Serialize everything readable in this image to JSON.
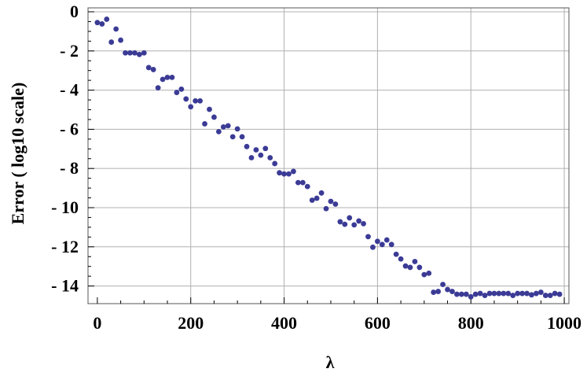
{
  "chart_data": {
    "type": "scatter",
    "title": "",
    "xlabel": "λ",
    "ylabel": "Error ( log10 scale)",
    "xlim": [
      -20,
      1010
    ],
    "ylim": [
      -14.9,
      0.2
    ],
    "xticks": [
      0,
      200,
      400,
      600,
      800,
      1000
    ],
    "yticks": [
      0,
      -2,
      -4,
      -6,
      -8,
      -10,
      -12,
      -14
    ],
    "ytick_labels": [
      "0",
      "- 2",
      "- 4",
      "- 6",
      "- 8",
      "- 10",
      "- 12",
      "- 14"
    ],
    "grid": true,
    "point_color": "#3b3b96",
    "points": [
      [
        0,
        -0.55
      ],
      [
        10,
        -0.62
      ],
      [
        20,
        -0.38
      ],
      [
        30,
        -1.55
      ],
      [
        40,
        -0.88
      ],
      [
        50,
        -1.45
      ],
      [
        60,
        -2.1
      ],
      [
        70,
        -2.1
      ],
      [
        80,
        -2.1
      ],
      [
        90,
        -2.18
      ],
      [
        100,
        -2.1
      ],
      [
        110,
        -2.85
      ],
      [
        120,
        -2.95
      ],
      [
        130,
        -3.88
      ],
      [
        140,
        -3.45
      ],
      [
        150,
        -3.35
      ],
      [
        160,
        -3.35
      ],
      [
        170,
        -4.12
      ],
      [
        180,
        -3.95
      ],
      [
        190,
        -4.45
      ],
      [
        200,
        -4.85
      ],
      [
        210,
        -4.55
      ],
      [
        220,
        -4.55
      ],
      [
        230,
        -5.72
      ],
      [
        240,
        -4.98
      ],
      [
        250,
        -5.38
      ],
      [
        260,
        -6.12
      ],
      [
        270,
        -5.88
      ],
      [
        280,
        -5.82
      ],
      [
        290,
        -6.38
      ],
      [
        300,
        -5.98
      ],
      [
        310,
        -6.38
      ],
      [
        320,
        -6.88
      ],
      [
        330,
        -7.45
      ],
      [
        340,
        -7.05
      ],
      [
        350,
        -7.32
      ],
      [
        360,
        -6.98
      ],
      [
        370,
        -7.45
      ],
      [
        380,
        -7.75
      ],
      [
        390,
        -8.22
      ],
      [
        400,
        -8.28
      ],
      [
        410,
        -8.28
      ],
      [
        420,
        -8.15
      ],
      [
        430,
        -8.72
      ],
      [
        440,
        -8.72
      ],
      [
        450,
        -8.92
      ],
      [
        460,
        -9.62
      ],
      [
        470,
        -9.52
      ],
      [
        480,
        -9.25
      ],
      [
        490,
        -10.05
      ],
      [
        500,
        -9.68
      ],
      [
        510,
        -9.82
      ],
      [
        520,
        -10.72
      ],
      [
        530,
        -10.85
      ],
      [
        540,
        -10.52
      ],
      [
        550,
        -10.88
      ],
      [
        560,
        -10.68
      ],
      [
        570,
        -10.82
      ],
      [
        580,
        -11.48
      ],
      [
        590,
        -12.02
      ],
      [
        600,
        -11.72
      ],
      [
        610,
        -11.88
      ],
      [
        620,
        -11.65
      ],
      [
        630,
        -11.88
      ],
      [
        640,
        -12.38
      ],
      [
        650,
        -12.62
      ],
      [
        660,
        -12.98
      ],
      [
        670,
        -13.05
      ],
      [
        680,
        -12.75
      ],
      [
        690,
        -13.05
      ],
      [
        700,
        -13.42
      ],
      [
        710,
        -13.35
      ],
      [
        720,
        -14.32
      ],
      [
        730,
        -14.28
      ],
      [
        740,
        -13.92
      ],
      [
        750,
        -14.18
      ],
      [
        760,
        -14.28
      ],
      [
        770,
        -14.42
      ],
      [
        780,
        -14.42
      ],
      [
        790,
        -14.42
      ],
      [
        800,
        -14.55
      ],
      [
        810,
        -14.42
      ],
      [
        820,
        -14.38
      ],
      [
        830,
        -14.48
      ],
      [
        840,
        -14.38
      ],
      [
        850,
        -14.38
      ],
      [
        860,
        -14.38
      ],
      [
        870,
        -14.38
      ],
      [
        880,
        -14.38
      ],
      [
        890,
        -14.48
      ],
      [
        900,
        -14.38
      ],
      [
        910,
        -14.38
      ],
      [
        920,
        -14.38
      ],
      [
        930,
        -14.45
      ],
      [
        940,
        -14.38
      ],
      [
        950,
        -14.32
      ],
      [
        960,
        -14.48
      ],
      [
        970,
        -14.48
      ],
      [
        980,
        -14.38
      ],
      [
        990,
        -14.42
      ]
    ]
  }
}
